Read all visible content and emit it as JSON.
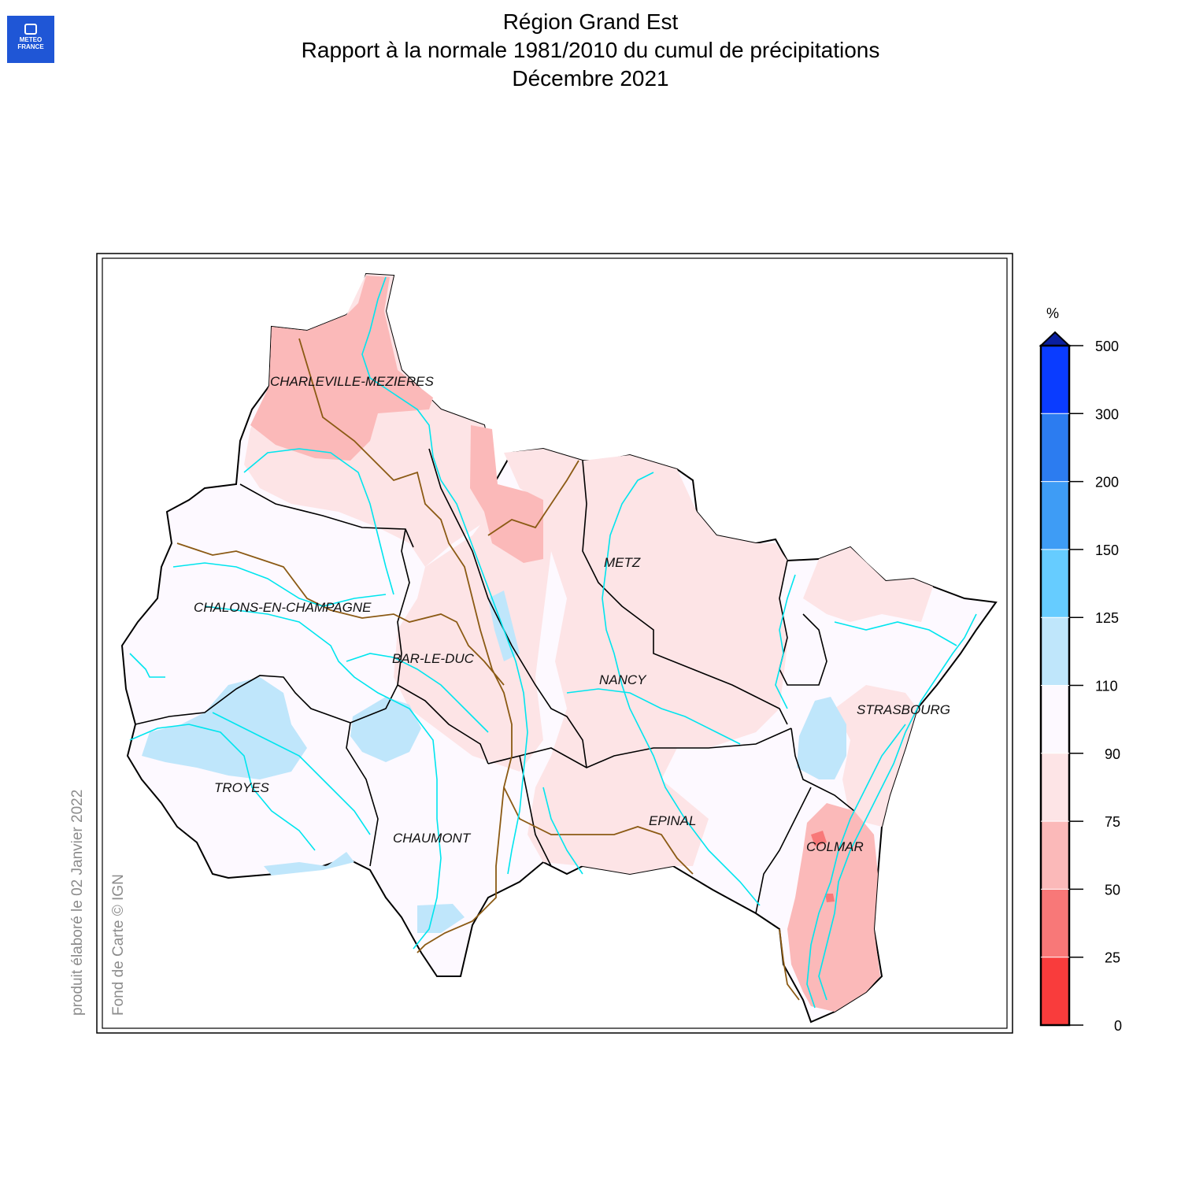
{
  "header": {
    "title_line1": "Région Grand Est",
    "title_line2": "Rapport à la normale 1981/2010 du cumul de précipitations",
    "title_line3": "Décembre 2021"
  },
  "logo": {
    "line1": "METEO",
    "line2": "FRANCE",
    "icon": "meteo-france-logo-icon",
    "color": "#1f56d6"
  },
  "credits": {
    "produced": "produit élaboré le 02 Janvier 2022",
    "basemap": "Fond de Carte © IGN"
  },
  "cities": [
    {
      "key": "charleville",
      "label": "CHARLEVILLE-MEZIERES"
    },
    {
      "key": "chalons",
      "label": "CHALONS-EN-CHAMPAGNE"
    },
    {
      "key": "metz",
      "label": "METZ"
    },
    {
      "key": "bar",
      "label": "BAR-LE-DUC"
    },
    {
      "key": "nancy",
      "label": "NANCY"
    },
    {
      "key": "strasbourg",
      "label": "STRASBOURG"
    },
    {
      "key": "troyes",
      "label": "TROYES"
    },
    {
      "key": "chaumont",
      "label": "CHAUMONT"
    },
    {
      "key": "epinal",
      "label": "EPINAL"
    },
    {
      "key": "colmar",
      "label": "COLMAR"
    }
  ],
  "legend": {
    "unit": "%",
    "ticks": [
      "500",
      "300",
      "200",
      "150",
      "125",
      "110",
      "90",
      "75",
      "50",
      "25",
      "0"
    ],
    "colors": [
      "#0a3cff",
      "#2c7cf0",
      "#3e9cf5",
      "#66ccff",
      "#bfe6fb",
      "#fdf9ff",
      "#fde4e6",
      "#fbb9b9",
      "#f87878",
      "#f93c3c"
    ],
    "over_color": "#0a1f9e"
  },
  "colors": {
    "river": "#00e5ee",
    "dept_border": "#000000",
    "basin_border": "#8b5a14"
  }
}
